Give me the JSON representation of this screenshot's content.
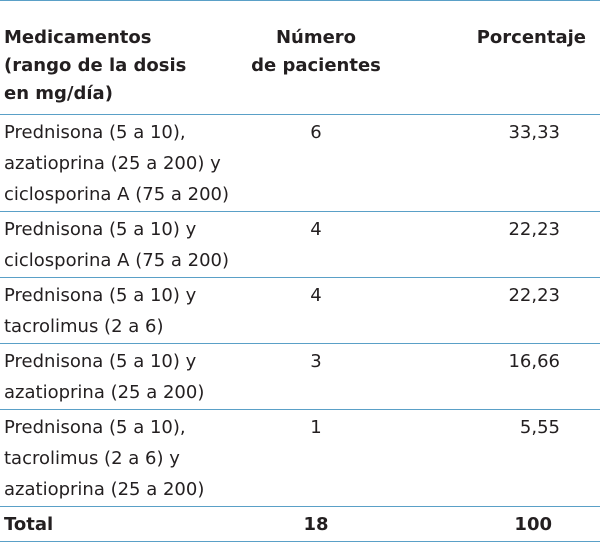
{
  "table": {
    "headers": {
      "medicamentos": [
        "Medicamentos",
        "(rango de la dosis",
        "en mg/día)"
      ],
      "numero": [
        "Número",
        "de pacientes"
      ],
      "porcentaje": [
        "Porcentaje"
      ]
    },
    "rows": [
      {
        "med": [
          "Prednisona (5 a 10),",
          "azatioprina (25 a 200) y",
          "ciclosporina A (75 a 200)"
        ],
        "num": "6",
        "pct": "33,33"
      },
      {
        "med": [
          "Prednisona (5 a 10) y",
          "ciclosporina A (75 a 200)"
        ],
        "num": "4",
        "pct": "22,23"
      },
      {
        "med": [
          "Prednisona (5 a 10) y",
          "tacrolimus (2 a 6)"
        ],
        "num": "4",
        "pct": "22,23"
      },
      {
        "med": [
          "Prednisona (5 a 10) y",
          "azatioprina (25 a 200)"
        ],
        "num": "3",
        "pct": "16,66"
      },
      {
        "med": [
          "Prednisona (5 a 10),",
          "tacrolimus (2 a 6) y",
          "azatioprina (25 a 200)"
        ],
        "num": "1",
        "pct": "5,55"
      }
    ],
    "total": {
      "label": "Total",
      "num": "18",
      "pct": "100"
    }
  }
}
